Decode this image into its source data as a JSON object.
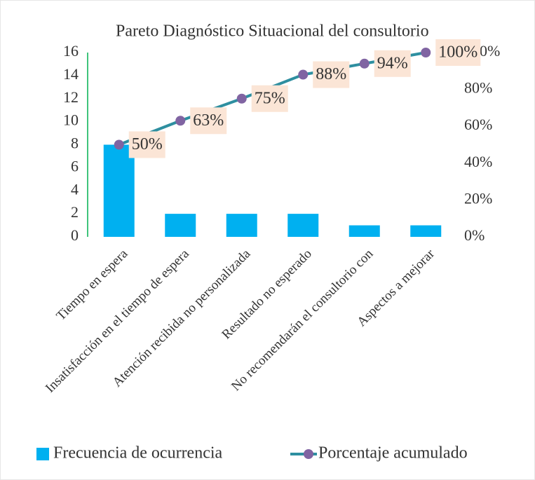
{
  "chart_data": {
    "type": "pareto",
    "title": "Pareto Diagnóstico Situacional del consultorio",
    "categories": [
      "Tiempo en espera",
      "Insatisfacción en el tiempo de espera",
      "Atención recibida no personalizada",
      "Resultado no esperado",
      "No recomendarán el consultorio con",
      "Aspectos a mejorar"
    ],
    "series": [
      {
        "name": "Frecuencia de ocurrencia",
        "color": "#00b0f0",
        "values": [
          8,
          2,
          2,
          2,
          1,
          1
        ]
      },
      {
        "name": "Porcentaje acumulado",
        "color": "#2e8fa0",
        "marker_color": "#8064a2",
        "axis": "y2",
        "values": [
          50,
          63,
          75,
          88,
          94,
          100
        ],
        "value_labels": [
          "50%",
          "63%",
          "75%",
          "88%",
          "94%",
          "100%"
        ]
      }
    ],
    "label_background": "#fbe5d6",
    "axis_color": "#00b050",
    "ylim": [
      0,
      16
    ],
    "yticks": [
      0,
      2,
      4,
      6,
      8,
      10,
      12,
      14,
      16
    ],
    "y2lim": [
      0,
      100
    ],
    "y2ticks": [
      {
        "value": 0,
        "label": "0%"
      },
      {
        "value": 20,
        "label": "20%"
      },
      {
        "value": 40,
        "label": "40%"
      },
      {
        "value": 60,
        "label": "60%"
      },
      {
        "value": 80,
        "label": "80%"
      },
      {
        "value": 100,
        "label": "100%"
      }
    ],
    "legend": "bottom"
  }
}
